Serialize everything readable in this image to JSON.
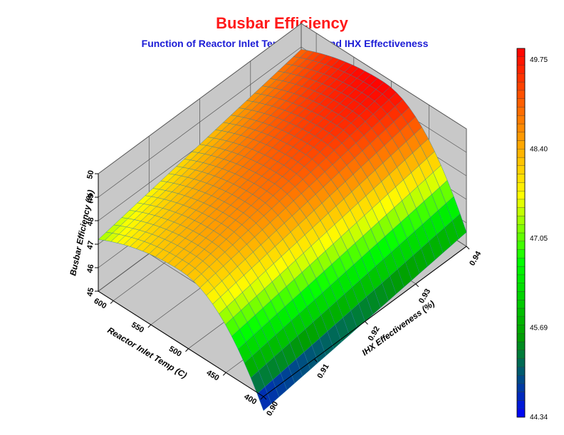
{
  "chart_data": {
    "type": "surface3d",
    "title": "Busbar Efficiency",
    "subtitle": "Function of Reactor Inlet Temperature and IHX Effectiveness",
    "x_axis": {
      "label": "Reactor Inlet Temp (C)",
      "range": [
        400,
        620
      ],
      "ticks": [
        "400",
        "450",
        "500",
        "550",
        "600"
      ]
    },
    "y_axis": {
      "label": "IHX Effectiveness (%)",
      "range": [
        0.9,
        0.94
      ],
      "ticks": [
        "0.90",
        "0.91",
        "0.92",
        "0.93",
        "0.94"
      ]
    },
    "z_axis": {
      "label": "Busbar Efficiency (%)",
      "range": [
        45,
        50
      ],
      "ticks": [
        "45",
        "46",
        "47",
        "48",
        "49",
        "50"
      ]
    },
    "surface_samples": [
      {
        "temp": 400,
        "ihx": 0.9,
        "efficiency": 44.4
      },
      {
        "temp": 400,
        "ihx": 0.94,
        "efficiency": 45.6
      },
      {
        "temp": 510,
        "ihx": 0.9,
        "efficiency": 48.1
      },
      {
        "temp": 510,
        "ihx": 0.94,
        "efficiency": 49.75
      },
      {
        "temp": 620,
        "ihx": 0.9,
        "efficiency": 47.2
      },
      {
        "temp": 620,
        "ihx": 0.94,
        "efficiency": 48.9
      }
    ],
    "colorbar": {
      "min": 44.34,
      "max": 49.75,
      "ticks": [
        "49.75",
        "48.40",
        "47.05",
        "45.69",
        "44.34"
      ],
      "colors": [
        "#0000ff",
        "#00a000",
        "#00ff00",
        "#ffff00",
        "#ff8000",
        "#ff0000"
      ]
    },
    "grid": true,
    "wall_color": "#c8c8c8"
  }
}
